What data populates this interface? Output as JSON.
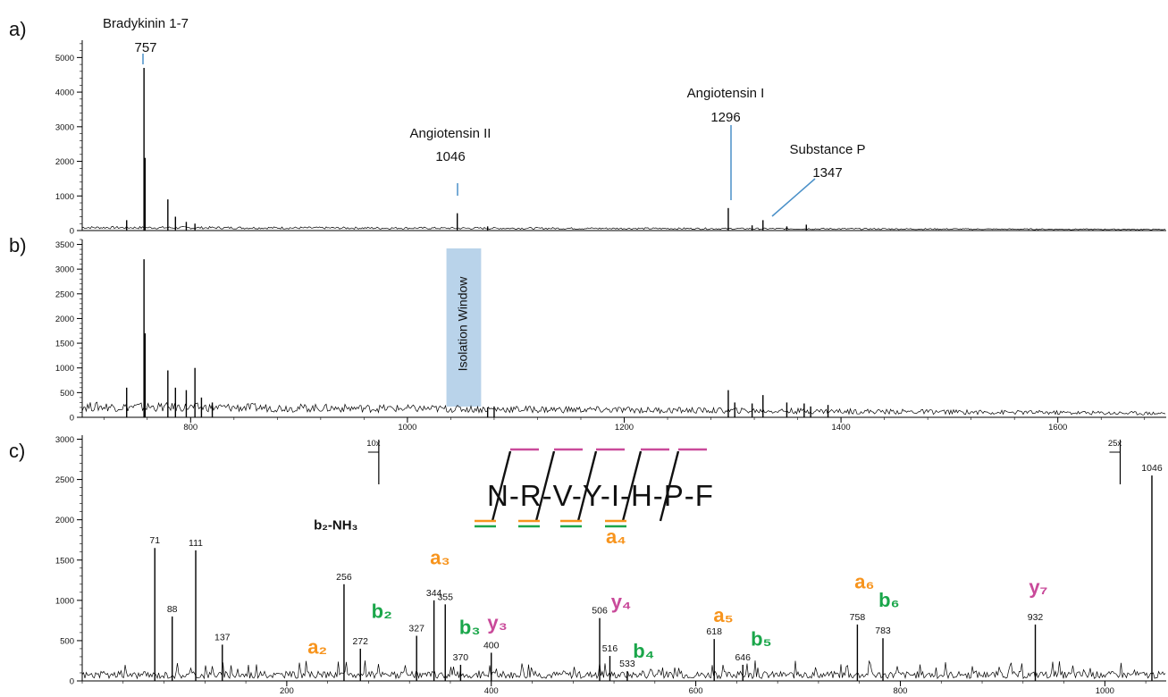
{
  "panel_labels": [
    "a)",
    "b)",
    "c)"
  ],
  "colors": {
    "annotation_line": "#4a90c8",
    "a_ion": "#f7941d",
    "b_ion": "#1aa64a",
    "y_ion": "#c94a9a",
    "isolation_window": "#b9d3ea",
    "trace": "#000000"
  },
  "chart_data": [
    {
      "type": "line",
      "panel": "a",
      "xlim": [
        700,
        1700
      ],
      "ylim": [
        0,
        5500
      ],
      "yticks": [
        0,
        1000,
        2000,
        3000,
        4000,
        5000
      ],
      "grid": false,
      "peaks": [
        {
          "x": 741,
          "y": 300
        },
        {
          "x": 757,
          "y": 4700
        },
        {
          "x": 758,
          "y": 2100
        },
        {
          "x": 779,
          "y": 900
        },
        {
          "x": 786,
          "y": 400
        },
        {
          "x": 796,
          "y": 250
        },
        {
          "x": 804,
          "y": 200
        },
        {
          "x": 1046,
          "y": 500
        },
        {
          "x": 1074,
          "y": 120
        },
        {
          "x": 1296,
          "y": 650
        },
        {
          "x": 1318,
          "y": 150
        },
        {
          "x": 1328,
          "y": 300
        },
        {
          "x": 1350,
          "y": 120
        },
        {
          "x": 1368,
          "y": 170
        }
      ],
      "annotations": [
        {
          "name": "Bradykinin 1-7",
          "mz": "757",
          "x": 757
        },
        {
          "name": "Angiotensin II",
          "mz": "1046",
          "x": 1046
        },
        {
          "name": "Angiotensin I",
          "mz": "1296",
          "x": 1296
        },
        {
          "name": "Substance P",
          "mz": "1347",
          "x": 1347
        }
      ]
    },
    {
      "type": "line",
      "panel": "b",
      "xlim": [
        700,
        1700
      ],
      "ylim": [
        0,
        3600
      ],
      "yticks": [
        0,
        500,
        1000,
        1500,
        2000,
        2500,
        3000,
        3500
      ],
      "xticks": [
        800,
        1000,
        1200,
        1400,
        1600
      ],
      "grid": false,
      "isolation_window": {
        "label": "Isolation Window",
        "x_range": [
          1036,
          1068
        ]
      },
      "peaks": [
        {
          "x": 741,
          "y": 600
        },
        {
          "x": 757,
          "y": 3200
        },
        {
          "x": 758,
          "y": 1700
        },
        {
          "x": 779,
          "y": 950
        },
        {
          "x": 786,
          "y": 600
        },
        {
          "x": 796,
          "y": 550
        },
        {
          "x": 804,
          "y": 1000
        },
        {
          "x": 810,
          "y": 400
        },
        {
          "x": 820,
          "y": 300
        },
        {
          "x": 1074,
          "y": 200
        },
        {
          "x": 1080,
          "y": 220
        },
        {
          "x": 1296,
          "y": 550
        },
        {
          "x": 1302,
          "y": 300
        },
        {
          "x": 1318,
          "y": 280
        },
        {
          "x": 1328,
          "y": 450
        },
        {
          "x": 1350,
          "y": 300
        },
        {
          "x": 1366,
          "y": 280
        },
        {
          "x": 1372,
          "y": 220
        },
        {
          "x": 1388,
          "y": 250
        }
      ]
    },
    {
      "type": "line",
      "panel": "c",
      "xlim": [
        0,
        1060
      ],
      "ylim": [
        0,
        3050
      ],
      "yticks": [
        0,
        500,
        1000,
        1500,
        2000,
        2500,
        3000
      ],
      "xticks": [
        200,
        400,
        600,
        800,
        1000
      ],
      "grid": false,
      "zoom_markers": [
        {
          "label": "10x",
          "x": 290
        },
        {
          "label": "25x",
          "x": 1015
        }
      ],
      "sequence": "N-R-V-Y-I-H-P-F",
      "peaks": [
        {
          "x": 71,
          "y": 1650,
          "label": "71"
        },
        {
          "x": 88,
          "y": 800,
          "label": "88"
        },
        {
          "x": 111,
          "y": 1620,
          "label": "111"
        },
        {
          "x": 137,
          "y": 450,
          "label": "137"
        },
        {
          "x": 256,
          "y": 1200,
          "label": "256"
        },
        {
          "x": 272,
          "y": 400,
          "label": "272"
        },
        {
          "x": 327,
          "y": 560,
          "label": "327"
        },
        {
          "x": 344,
          "y": 1000,
          "label": "344"
        },
        {
          "x": 355,
          "y": 950,
          "label": "355"
        },
        {
          "x": 370,
          "y": 200,
          "label": "370"
        },
        {
          "x": 400,
          "y": 350,
          "label": "400"
        },
        {
          "x": 506,
          "y": 780,
          "label": "506"
        },
        {
          "x": 516,
          "y": 310,
          "label": "516"
        },
        {
          "x": 533,
          "y": 120,
          "label": "533"
        },
        {
          "x": 618,
          "y": 520,
          "label": "618"
        },
        {
          "x": 646,
          "y": 200,
          "label": "646"
        },
        {
          "x": 758,
          "y": 700,
          "label": "758"
        },
        {
          "x": 783,
          "y": 530,
          "label": "783"
        },
        {
          "x": 932,
          "y": 700,
          "label": "932"
        },
        {
          "x": 1046,
          "y": 2550,
          "label": "1046"
        }
      ],
      "ion_labels": [
        {
          "text": "b₂-NH₃",
          "type": "neutral",
          "x": 248,
          "y": 1880
        },
        {
          "text": "a₂",
          "type": "a",
          "x": 230,
          "y": 340
        },
        {
          "text": "b₂",
          "type": "b",
          "x": 293,
          "y": 780
        },
        {
          "text": "a₃",
          "type": "a",
          "x": 350,
          "y": 1450
        },
        {
          "text": "b₃",
          "type": "b",
          "x": 379,
          "y": 580
        },
        {
          "text": "y₃",
          "type": "y",
          "x": 406,
          "y": 640
        },
        {
          "text": "a₄",
          "type": "a",
          "x": 522,
          "y": 1710
        },
        {
          "text": "y₄",
          "type": "y",
          "x": 527,
          "y": 900
        },
        {
          "text": "b₄",
          "type": "b",
          "x": 549,
          "y": 290
        },
        {
          "text": "a₅",
          "type": "a",
          "x": 627,
          "y": 730
        },
        {
          "text": "b₅",
          "type": "b",
          "x": 664,
          "y": 440
        },
        {
          "text": "a₆",
          "type": "a",
          "x": 765,
          "y": 1150
        },
        {
          "text": "b₆",
          "type": "b",
          "x": 789,
          "y": 920
        },
        {
          "text": "y₇",
          "type": "y",
          "x": 935,
          "y": 1080
        }
      ]
    }
  ]
}
